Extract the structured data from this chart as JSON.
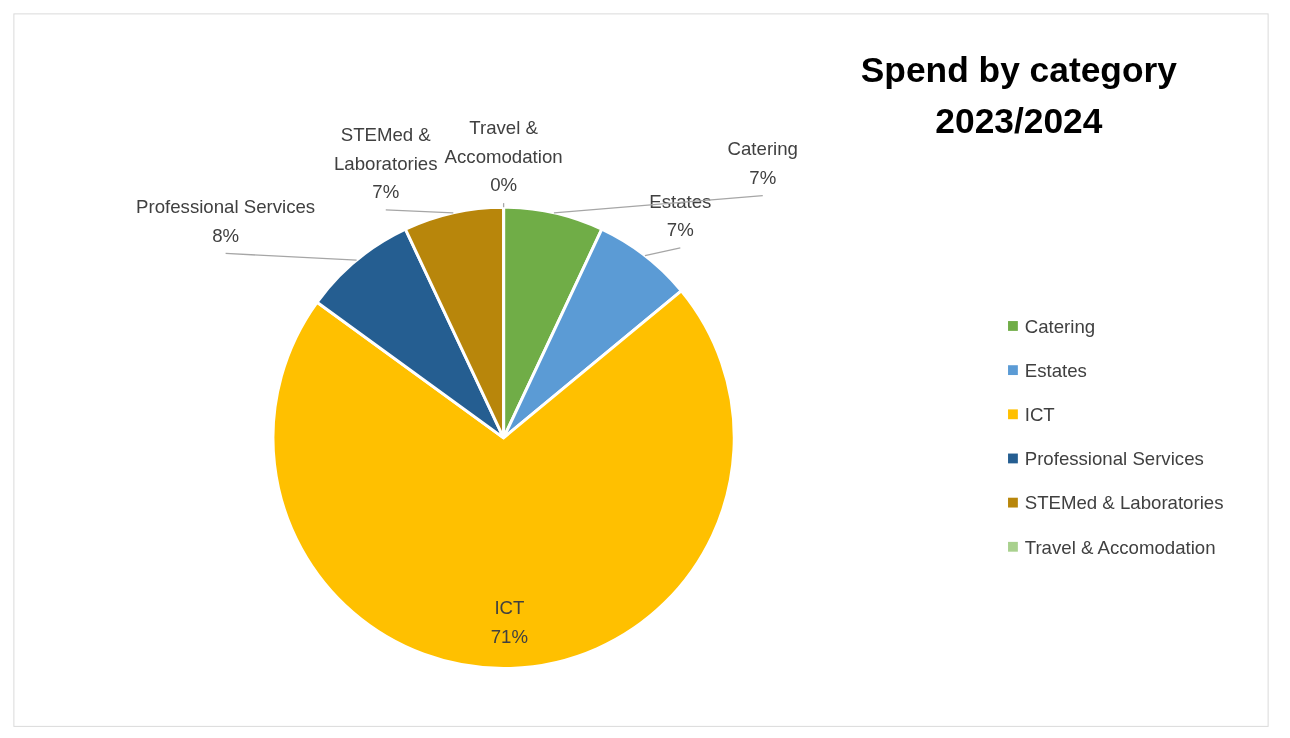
{
  "chart_data": {
    "type": "pie",
    "title": "Spend by category\n2023/2024",
    "categories": [
      "Catering",
      "Estates",
      "ICT",
      "Professional Services",
      "STEMed & Laboratories",
      "Travel & Accomodation"
    ],
    "values": [
      7,
      7,
      71,
      8,
      7,
      0
    ],
    "colors": [
      "#70ad47",
      "#5b9bd5",
      "#ffc000",
      "#255e91",
      "#b8860b",
      "#a9d18e"
    ],
    "value_labels": [
      "7%",
      "7%",
      "71%",
      "8%",
      "7%",
      "0%"
    ],
    "legend": "right"
  }
}
